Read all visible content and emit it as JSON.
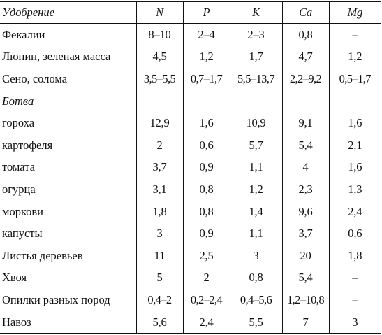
{
  "table": {
    "headers": [
      "Удобрение",
      "N",
      "P",
      "K",
      "Ca",
      "Mg"
    ],
    "rows": [
      [
        "Фекалии",
        "8–10",
        "2–4",
        "2–3",
        "0,8",
        "–"
      ],
      [
        "Люпин, зеленая масса",
        "4,5",
        "1,2",
        "1,7",
        "4,7",
        "1,2"
      ],
      [
        "Сено, солома",
        "3,5–5,5",
        "0,7–1,7",
        "5,5–13,7",
        "2,2–9,2",
        "0,5–1,7"
      ],
      [
        "Ботва",
        "",
        "",
        "",
        "",
        ""
      ],
      [
        "гороха",
        "12,9",
        "1,6",
        "10,9",
        "9,1",
        "1,6"
      ],
      [
        "картофеля",
        "2",
        "0,6",
        "5,7",
        "5,4",
        "2,1"
      ],
      [
        "томата",
        "3,7",
        "0,9",
        "1,1",
        "4",
        "1,6"
      ],
      [
        "огурца",
        "3,1",
        "0,8",
        "1,2",
        "2,3",
        "1,3"
      ],
      [
        "моркови",
        "1,8",
        "0,8",
        "1,4",
        "9,6",
        "2,4"
      ],
      [
        "капусты",
        "3",
        "0,9",
        "1,1",
        "3,7",
        "0,6"
      ],
      [
        "Листья деревьев",
        "11",
        "2,5",
        "3",
        "20",
        "1,8"
      ],
      [
        "Хвоя",
        "5",
        "2",
        "0,8",
        "5,4",
        "–"
      ],
      [
        "Опилки разных пород",
        "0,4–2",
        "0,2–2,4",
        "0,4–5,6",
        "1,2–10,8",
        "–"
      ],
      [
        "Навоз",
        "5,6",
        "2,4",
        "5,5",
        "7",
        "3"
      ]
    ]
  }
}
